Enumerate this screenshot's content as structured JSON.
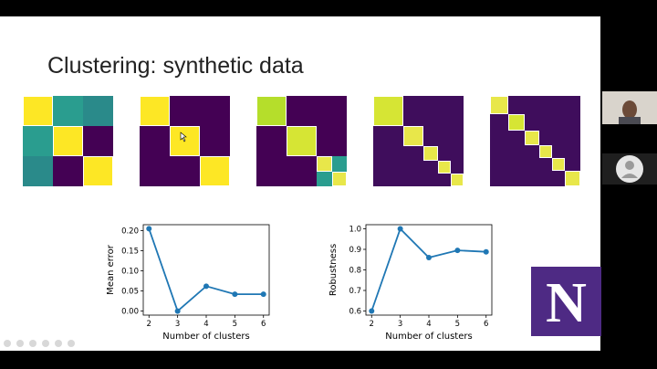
{
  "slide": {
    "title": "Clustering: synthetic data"
  },
  "colors": {
    "yellow": "#fde725",
    "teal": "#2a9d8f",
    "purple": "#440154",
    "lightgreen": "#b5de2b",
    "line": "#1f77b4",
    "logo_purple": "#4e2a84"
  },
  "logo": {
    "letter": "N"
  },
  "chart_data": [
    {
      "type": "line",
      "x": [
        2,
        3,
        4,
        5,
        6
      ],
      "y": [
        0.205,
        0.0,
        0.062,
        0.042,
        0.042
      ],
      "xlabel": "Number of clusters",
      "ylabel": "Mean error",
      "xticks": [
        "2",
        "3",
        "4",
        "5",
        "6"
      ],
      "yticks": [
        "0.00",
        "0.05",
        "0.10",
        "0.15",
        "0.20"
      ],
      "ylim": [
        -0.01,
        0.215
      ],
      "grid": false
    },
    {
      "type": "line",
      "x": [
        2,
        3,
        4,
        5,
        6
      ],
      "y": [
        0.6,
        1.0,
        0.86,
        0.895,
        0.888
      ],
      "xlabel": "Number of clusters",
      "ylabel": "Robustness",
      "xticks": [
        "2",
        "3",
        "4",
        "5",
        "6"
      ],
      "yticks": [
        "0.6",
        "0.7",
        "0.8",
        "0.9",
        "1.0"
      ],
      "ylim": [
        0.58,
        1.02
      ],
      "grid": false
    }
  ]
}
